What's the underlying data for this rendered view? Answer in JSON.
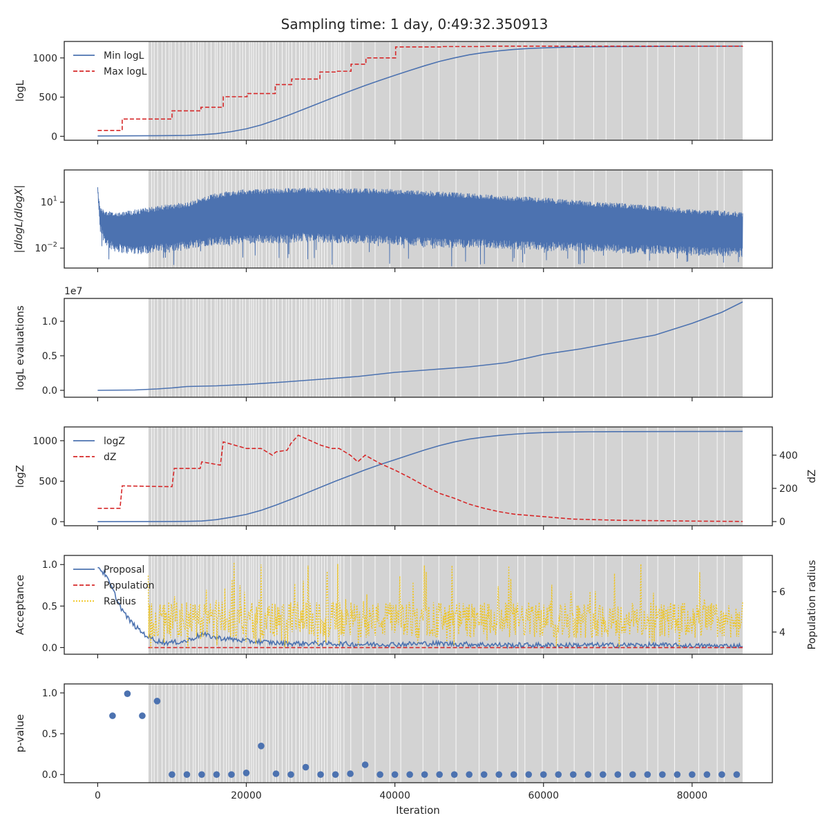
{
  "figure": {
    "title": "Sampling time: 1 day, 0:49:32.350913",
    "xlabel": "Iteration",
    "shaded_band": [
      6800,
      86800
    ]
  },
  "chart_data": [
    {
      "id": "logl",
      "type": "line",
      "ylabel": "logL",
      "xlim": [
        -4500,
        90800
      ],
      "ylim": [
        -50,
        1210
      ],
      "yticks": [
        0,
        500,
        1000
      ],
      "ytick_labels": [
        "0",
        "500",
        "1000"
      ],
      "xticks": [
        0,
        20000,
        40000,
        60000,
        80000
      ],
      "legend": {
        "position": "upper-left"
      },
      "series": [
        {
          "name": "Min logL",
          "color": "#4c72b0",
          "dash": "solid",
          "x": [
            0,
            8000,
            12000,
            14000,
            16000,
            18000,
            20000,
            22000,
            24000,
            26000,
            28000,
            30000,
            32000,
            34000,
            36000,
            38000,
            40000,
            42000,
            44000,
            46000,
            48000,
            50000,
            52000,
            54000,
            56000,
            58000,
            60000,
            62000,
            64000,
            66000,
            68000,
            70000,
            75000,
            80000,
            86800
          ],
          "y": [
            5,
            8,
            12,
            20,
            35,
            60,
            95,
            145,
            210,
            280,
            355,
            430,
            505,
            578,
            648,
            715,
            778,
            840,
            900,
            955,
            1000,
            1040,
            1068,
            1090,
            1108,
            1120,
            1128,
            1134,
            1138,
            1141,
            1143,
            1145,
            1147,
            1148,
            1150
          ]
        },
        {
          "name": "Max logL",
          "color": "#d62728",
          "dash": "dashed",
          "step": true,
          "x": [
            0,
            3300,
            10000,
            13900,
            16900,
            20100,
            23900,
            26100,
            29900,
            32100,
            34100,
            36100,
            40100,
            46400,
            52000,
            86800
          ],
          "y": [
            75,
            220,
            325,
            370,
            505,
            545,
            660,
            730,
            820,
            830,
            920,
            1000,
            1140,
            1145,
            1150,
            1152
          ]
        }
      ]
    },
    {
      "id": "dlogl",
      "type": "line",
      "ylabel": "|dlogL/dlogX|",
      "yscale": "log",
      "xlim": [
        -4500,
        90800
      ],
      "ylim_log10": [
        -3.3,
        3.1
      ],
      "yticks_log10": [
        -2,
        1
      ],
      "ytick_labels": [
        "10−2",
        "101"
      ],
      "xticks": [
        0,
        20000,
        40000,
        60000,
        80000
      ],
      "series": [
        {
          "name": "",
          "color": "#4c72b0",
          "dash": "solid",
          "filled_envelope": true,
          "x": [
            0,
            300,
            1000,
            2000,
            4000,
            6000,
            8000,
            10000,
            12000,
            14000,
            16000,
            18000,
            20000,
            24000,
            28000,
            32000,
            36000,
            40000,
            44000,
            48000,
            52000,
            56000,
            60000,
            64000,
            68000,
            72000,
            76000,
            80000,
            84000,
            86800
          ],
          "upper": [
            2.2,
            0.8,
            0.5,
            0.4,
            0.45,
            0.6,
            0.75,
            0.9,
            1.0,
            1.3,
            1.6,
            1.75,
            1.85,
            1.9,
            1.95,
            1.9,
            1.9,
            1.85,
            1.75,
            1.65,
            1.55,
            1.4,
            1.3,
            1.15,
            1.0,
            0.9,
            0.75,
            0.55,
            0.45,
            0.35
          ],
          "lower": [
            1.6,
            -0.9,
            -1.8,
            -2.2,
            -2.4,
            -2.4,
            -2.3,
            -2.3,
            -2.1,
            -1.9,
            -1.8,
            -1.8,
            -1.7,
            -1.7,
            -1.6,
            -1.7,
            -1.7,
            -1.8,
            -1.9,
            -2.0,
            -2.0,
            -2.1,
            -2.2,
            -2.2,
            -2.3,
            -2.4,
            -2.4,
            -2.5,
            -2.5,
            -2.6
          ],
          "spikes_min": -3.2
        }
      ]
    },
    {
      "id": "evals",
      "type": "line",
      "ylabel": "logL evaluations",
      "offset_text": "1e7",
      "xlim": [
        -4500,
        90800
      ],
      "ylim": [
        -0.1,
        1.33
      ],
      "yticks": [
        0,
        0.5,
        1.0
      ],
      "ytick_labels": [
        "0.0",
        "0.5",
        "1.0"
      ],
      "xticks": [
        0,
        20000,
        40000,
        60000,
        80000
      ],
      "series": [
        {
          "name": "",
          "color": "#4c72b0",
          "dash": "solid",
          "x": [
            0,
            5000,
            8000,
            10000,
            12000,
            14000,
            16000,
            20000,
            25000,
            30000,
            35000,
            40000,
            45000,
            50000,
            55000,
            60000,
            65000,
            70000,
            75000,
            80000,
            84000,
            86800
          ],
          "y": [
            0.0,
            0.005,
            0.02,
            0.035,
            0.055,
            0.06,
            0.065,
            0.085,
            0.12,
            0.16,
            0.2,
            0.26,
            0.3,
            0.34,
            0.4,
            0.52,
            0.6,
            0.7,
            0.8,
            0.97,
            1.13,
            1.28
          ]
        }
      ]
    },
    {
      "id": "logz",
      "type": "line",
      "ylabel": "logZ",
      "ylabel_right": "dZ",
      "xlim": [
        -4500,
        90800
      ],
      "ylim": [
        -50,
        1170
      ],
      "ylim_right": [
        -25,
        570
      ],
      "yticks": [
        0,
        500,
        1000
      ],
      "ytick_labels": [
        "0",
        "500",
        "1000"
      ],
      "yticks_right": [
        0,
        200,
        400
      ],
      "ytick_labels_right": [
        "0",
        "200",
        "400"
      ],
      "xticks": [
        0,
        20000,
        40000,
        60000,
        80000
      ],
      "legend": {
        "position": "upper-left"
      },
      "series": [
        {
          "name": "logZ",
          "color": "#4c72b0",
          "dash": "solid",
          "axis": "left",
          "x": [
            0,
            8000,
            12000,
            14000,
            16000,
            18000,
            20000,
            22000,
            24000,
            26000,
            28000,
            30000,
            32000,
            34000,
            36000,
            38000,
            40000,
            42000,
            44000,
            46000,
            48000,
            50000,
            52000,
            54000,
            56000,
            58000,
            60000,
            62000,
            64000,
            66000,
            68000,
            70000,
            75000,
            80000,
            86800
          ],
          "y": [
            0,
            2,
            4,
            8,
            25,
            55,
            90,
            140,
            205,
            275,
            350,
            425,
            500,
            570,
            640,
            705,
            765,
            825,
            885,
            940,
            985,
            1020,
            1045,
            1065,
            1080,
            1092,
            1100,
            1105,
            1108,
            1110,
            1111,
            1112,
            1113,
            1114,
            1115
          ]
        },
        {
          "name": "dZ",
          "color": "#d62728",
          "dash": "dashed",
          "axis": "right",
          "x": [
            0,
            3000,
            3300,
            10000,
            10300,
            13800,
            14000,
            16500,
            16900,
            20000,
            22000,
            23500,
            24000,
            25500,
            26000,
            27000,
            27500,
            30000,
            31500,
            32500,
            34000,
            35000,
            36000,
            38000,
            40000,
            42000,
            44000,
            46000,
            48000,
            50000,
            52000,
            54000,
            56000,
            60000,
            64000,
            70000,
            76000,
            80000,
            86800
          ],
          "y": [
            80,
            80,
            215,
            210,
            320,
            320,
            360,
            340,
            480,
            440,
            440,
            400,
            420,
            430,
            470,
            520,
            510,
            460,
            440,
            440,
            400,
            360,
            400,
            350,
            310,
            265,
            215,
            170,
            140,
            105,
            80,
            60,
            45,
            30,
            15,
            8,
            5,
            3,
            1
          ]
        }
      ]
    },
    {
      "id": "acceptance",
      "type": "line",
      "ylabel": "Acceptance",
      "ylabel_right": "Population radius",
      "xlim": [
        -4500,
        90800
      ],
      "ylim": [
        -0.08,
        1.11
      ],
      "ylim_right": [
        2.9,
        7.8
      ],
      "yticks": [
        0,
        0.5,
        1.0
      ],
      "ytick_labels": [
        "0.0",
        "0.5",
        "1.0"
      ],
      "yticks_right": [
        4,
        6
      ],
      "ytick_labels_right": [
        "4",
        "6"
      ],
      "xticks": [
        0,
        20000,
        40000,
        60000,
        80000
      ],
      "legend": {
        "position": "upper-left"
      },
      "series": [
        {
          "name": "Proposal",
          "color": "#4c72b0",
          "dash": "solid",
          "axis": "left",
          "x": [
            0,
            1000,
            2000,
            3000,
            4000,
            5000,
            6000,
            7000,
            8000,
            9000,
            10000,
            12000,
            14000,
            16000,
            20000,
            25000,
            30000,
            35000,
            40000,
            45000,
            50000,
            55000,
            60000,
            65000,
            70000,
            75000,
            80000,
            86800
          ],
          "y": [
            0.98,
            0.88,
            0.7,
            0.5,
            0.36,
            0.26,
            0.18,
            0.12,
            0.08,
            0.06,
            0.06,
            0.08,
            0.16,
            0.12,
            0.08,
            0.05,
            0.05,
            0.04,
            0.04,
            0.05,
            0.04,
            0.03,
            0.03,
            0.03,
            0.03,
            0.03,
            0.02,
            0.02
          ]
        },
        {
          "name": "Population",
          "color": "#d62728",
          "dash": "dashed",
          "axis": "left",
          "x": [
            6800,
            86800
          ],
          "y": [
            0.0,
            0.0
          ]
        },
        {
          "name": "Radius",
          "color": "#f0c419",
          "dash": "dotted",
          "axis": "right",
          "x_range": [
            6800,
            86800
          ],
          "mean": 4.6,
          "min": 3.2,
          "max": 7.5
        }
      ]
    },
    {
      "id": "pvalue",
      "type": "scatter",
      "ylabel": "p-value",
      "xlabel": "Iteration",
      "xlim": [
        -4500,
        90800
      ],
      "ylim": [
        -0.1,
        1.11
      ],
      "yticks": [
        0,
        0.5,
        1.0
      ],
      "ytick_labels": [
        "0.0",
        "0.5",
        "1.0"
      ],
      "xticks": [
        0,
        20000,
        40000,
        60000,
        80000
      ],
      "xtick_labels": [
        "0",
        "20000",
        "40000",
        "60000",
        "80000"
      ],
      "series": [
        {
          "name": "",
          "color": "#4c72b0",
          "x": [
            2000,
            4000,
            6000,
            8000,
            10000,
            12000,
            14000,
            16000,
            18000,
            20000,
            22000,
            24000,
            26000,
            28000,
            30000,
            32000,
            34000,
            36000,
            38000,
            40000,
            42000,
            44000,
            46000,
            48000,
            50000,
            52000,
            54000,
            56000,
            58000,
            60000,
            62000,
            64000,
            66000,
            68000,
            70000,
            72000,
            74000,
            76000,
            78000,
            80000,
            82000,
            84000,
            86000
          ],
          "y": [
            0.72,
            0.99,
            0.72,
            0.9,
            0.0,
            0.0,
            0.0,
            0.0,
            0.0,
            0.02,
            0.35,
            0.01,
            0.0,
            0.09,
            0.0,
            0.0,
            0.01,
            0.12,
            0.0,
            0.0,
            0.0,
            0.0,
            0.0,
            0.0,
            0.0,
            0.0,
            0.0,
            0.0,
            0.0,
            0.0,
            0.0,
            0.0,
            0.0,
            0.0,
            0.0,
            0.0,
            0.0,
            0.0,
            0.0,
            0.0,
            0.0,
            0.0,
            0.0
          ]
        }
      ]
    }
  ]
}
